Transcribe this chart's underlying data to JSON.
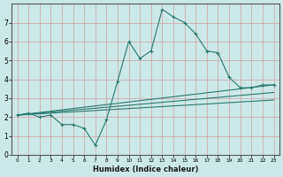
{
  "xlabel": "Humidex (Indice chaleur)",
  "background_color": "#cce8e8",
  "grid_color": "#d4a0a0",
  "line_color": "#2a7a6f",
  "xlim": [
    -0.5,
    23.5
  ],
  "ylim": [
    0,
    8
  ],
  "xticks": [
    0,
    1,
    2,
    3,
    4,
    5,
    6,
    7,
    8,
    9,
    10,
    11,
    12,
    13,
    14,
    15,
    16,
    17,
    18,
    19,
    20,
    21,
    22,
    23
  ],
  "yticks": [
    0,
    1,
    2,
    3,
    4,
    5,
    6,
    7
  ],
  "series": [
    {
      "x": [
        0,
        1,
        2,
        3,
        4,
        5,
        6,
        7,
        8,
        9,
        10,
        11,
        12,
        13,
        14,
        15,
        16,
        17,
        18,
        19,
        20,
        21,
        22,
        23
      ],
      "y": [
        2.1,
        2.2,
        2.0,
        2.1,
        1.6,
        1.6,
        1.4,
        0.5,
        1.85,
        3.9,
        6.0,
        5.1,
        5.5,
        7.7,
        7.3,
        7.0,
        6.4,
        5.5,
        5.4,
        4.1,
        3.55,
        3.55,
        3.7,
        3.7
      ],
      "has_marker": true
    },
    {
      "x": [
        0,
        23
      ],
      "y": [
        2.1,
        3.7
      ],
      "has_marker": false
    },
    {
      "x": [
        0,
        23
      ],
      "y": [
        2.1,
        3.3
      ],
      "has_marker": false
    },
    {
      "x": [
        0,
        23
      ],
      "y": [
        2.1,
        2.9
      ],
      "has_marker": false
    }
  ]
}
